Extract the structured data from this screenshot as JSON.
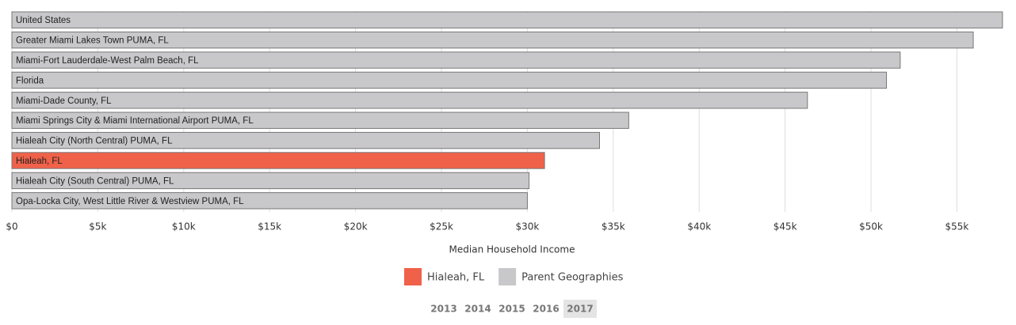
{
  "chart_data": {
    "type": "hbar",
    "categories": [
      "United States",
      "Greater Miami Lakes Town PUMA, FL",
      "Miami-Fort Lauderdale-West Palm Beach, FL",
      "Florida",
      "Miami-Dade County, FL",
      "Miami Springs City & Miami International Airport PUMA, FL",
      "Hialeah City (North Central) PUMA, FL",
      "Hialeah, FL",
      "Hialeah City (South Central) PUMA, FL",
      "Opa-Locka City, West Little River & Westview PUMA, FL"
    ],
    "values": [
      57650,
      55950,
      51700,
      50900,
      46300,
      35900,
      34200,
      31000,
      30100,
      30000
    ],
    "colors": [
      "#c8c8cb",
      "#c8c8cb",
      "#c8c8cb",
      "#c8c8cb",
      "#c8c8cb",
      "#c8c8cb",
      "#c8c8cb",
      "#f0614a",
      "#c8c8cb",
      "#c8c8cb"
    ],
    "xlim": [
      0,
      57700
    ],
    "xticks": [
      {
        "value": 0,
        "label": "$0"
      },
      {
        "value": 5000,
        "label": "$5k"
      },
      {
        "value": 10000,
        "label": "$10k"
      },
      {
        "value": 15000,
        "label": "$15k"
      },
      {
        "value": 20000,
        "label": "$20k"
      },
      {
        "value": 25000,
        "label": "$25k"
      },
      {
        "value": 30000,
        "label": "$30k"
      },
      {
        "value": 35000,
        "label": "$35k"
      },
      {
        "value": 40000,
        "label": "$40k"
      },
      {
        "value": 45000,
        "label": "$45k"
      },
      {
        "value": 50000,
        "label": "$50k"
      },
      {
        "value": 55000,
        "label": "$55k"
      }
    ],
    "grid": true,
    "xlabel": "Median Household Income",
    "legend": [
      {
        "name": "Hialeah, FL",
        "color": "#f0614a"
      },
      {
        "name": "Parent Geographies",
        "color": "#c8c8cb"
      }
    ]
  },
  "year_selector": {
    "years": [
      "2013",
      "2014",
      "2015",
      "2016",
      "2017"
    ],
    "selected": "2017"
  }
}
